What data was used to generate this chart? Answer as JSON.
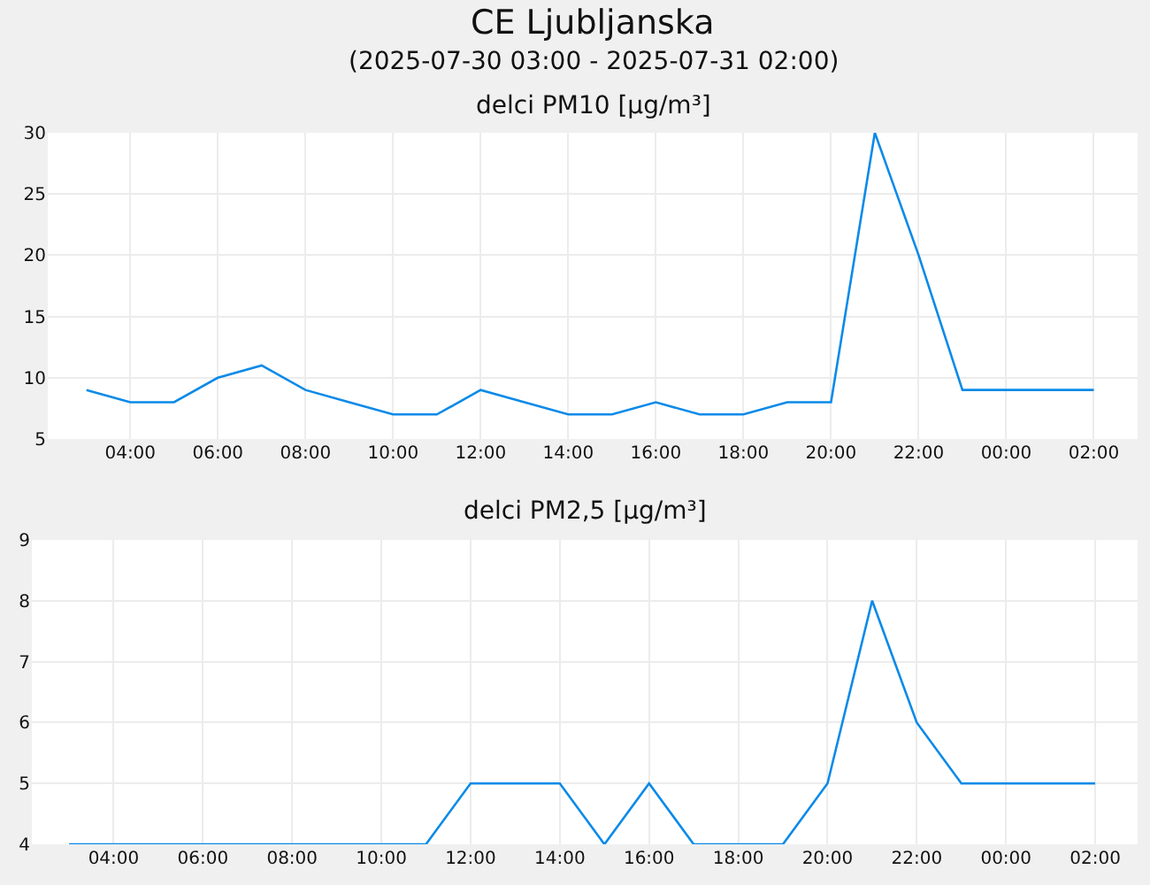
{
  "chart_data": [
    {
      "type": "line",
      "title": "CE Ljubljanska",
      "subtitle": "(2025-07-30 03:00 - 2025-07-31 02:00)",
      "annotations": [
        "delci PM10 [µg/m³]"
      ],
      "x": [
        "2025-07-30T03:00",
        "2025-07-30T04:00",
        "2025-07-30T05:00",
        "2025-07-30T06:00",
        "2025-07-30T07:00",
        "2025-07-30T08:00",
        "2025-07-30T09:00",
        "2025-07-30T10:00",
        "2025-07-30T11:00",
        "2025-07-30T12:00",
        "2025-07-30T13:00",
        "2025-07-30T14:00",
        "2025-07-30T15:00",
        "2025-07-30T16:00",
        "2025-07-30T17:00",
        "2025-07-30T18:00",
        "2025-07-30T19:00",
        "2025-07-30T20:00",
        "2025-07-30T21:00",
        "2025-07-30T22:00",
        "2025-07-30T23:00",
        "2025-07-31T00:00",
        "2025-07-31T01:00",
        "2025-07-31T02:00"
      ],
      "values": [
        9,
        8,
        8,
        10,
        11,
        9,
        8,
        7,
        7,
        9,
        8,
        7,
        7,
        8,
        7,
        7,
        8,
        8,
        30,
        20,
        9,
        9,
        9,
        9
      ],
      "color": "#0a8ae8",
      "xlim": [
        "2025-07-30T02:07",
        "2025-07-31T03:00"
      ],
      "xticks": [
        {
          "value": "2025-07-30T04:00",
          "label": "04:00"
        },
        {
          "value": "2025-07-30T06:00",
          "label": "06:00"
        },
        {
          "value": "2025-07-30T08:00",
          "label": "08:00"
        },
        {
          "value": "2025-07-30T10:00",
          "label": "10:00"
        },
        {
          "value": "2025-07-30T12:00",
          "label": "12:00"
        },
        {
          "value": "2025-07-30T14:00",
          "label": "14:00"
        },
        {
          "value": "2025-07-30T16:00",
          "label": "16:00"
        },
        {
          "value": "2025-07-30T18:00",
          "label": "18:00"
        },
        {
          "value": "2025-07-30T20:00",
          "label": "20:00"
        },
        {
          "value": "2025-07-30T22:00",
          "label": "22:00"
        },
        {
          "value": "2025-07-31T00:00",
          "label": "00:00"
        },
        {
          "value": "2025-07-31T02:00",
          "label": "02:00"
        }
      ],
      "ylim": [
        5,
        30
      ],
      "yticks": [
        5,
        10,
        15,
        20,
        25,
        30
      ],
      "grid": true
    },
    {
      "type": "line",
      "title": "delci PM2,5 [µg/m³]",
      "x": [
        "2025-07-30T03:00",
        "2025-07-30T04:00",
        "2025-07-30T05:00",
        "2025-07-30T06:00",
        "2025-07-30T07:00",
        "2025-07-30T08:00",
        "2025-07-30T09:00",
        "2025-07-30T10:00",
        "2025-07-30T11:00",
        "2025-07-30T12:00",
        "2025-07-30T13:00",
        "2025-07-30T14:00",
        "2025-07-30T15:00",
        "2025-07-30T16:00",
        "2025-07-30T17:00",
        "2025-07-30T18:00",
        "2025-07-30T19:00",
        "2025-07-30T20:00",
        "2025-07-30T21:00",
        "2025-07-30T22:00",
        "2025-07-30T23:00",
        "2025-07-31T00:00",
        "2025-07-31T01:00",
        "2025-07-31T02:00"
      ],
      "values": [
        4,
        4,
        4,
        4,
        4,
        4,
        4,
        4,
        4,
        5,
        5,
        5,
        4,
        5,
        4,
        4,
        4,
        5,
        8,
        6,
        5,
        5,
        5,
        5
      ],
      "color": "#0a8ae8",
      "xlim": [
        "2025-07-30T02:10",
        "2025-07-31T02:57"
      ],
      "xticks": [
        {
          "value": "2025-07-30T04:00",
          "label": "04:00"
        },
        {
          "value": "2025-07-30T06:00",
          "label": "06:00"
        },
        {
          "value": "2025-07-30T08:00",
          "label": "08:00"
        },
        {
          "value": "2025-07-30T10:00",
          "label": "10:00"
        },
        {
          "value": "2025-07-30T12:00",
          "label": "12:00"
        },
        {
          "value": "2025-07-30T14:00",
          "label": "14:00"
        },
        {
          "value": "2025-07-30T16:00",
          "label": "16:00"
        },
        {
          "value": "2025-07-30T18:00",
          "label": "18:00"
        },
        {
          "value": "2025-07-30T20:00",
          "label": "20:00"
        },
        {
          "value": "2025-07-30T22:00",
          "label": "22:00"
        },
        {
          "value": "2025-07-31T00:00",
          "label": "00:00"
        },
        {
          "value": "2025-07-31T02:00",
          "label": "02:00"
        }
      ],
      "ylim": [
        4,
        9
      ],
      "yticks": [
        4,
        5,
        6,
        7,
        8,
        9
      ],
      "grid": true
    }
  ]
}
